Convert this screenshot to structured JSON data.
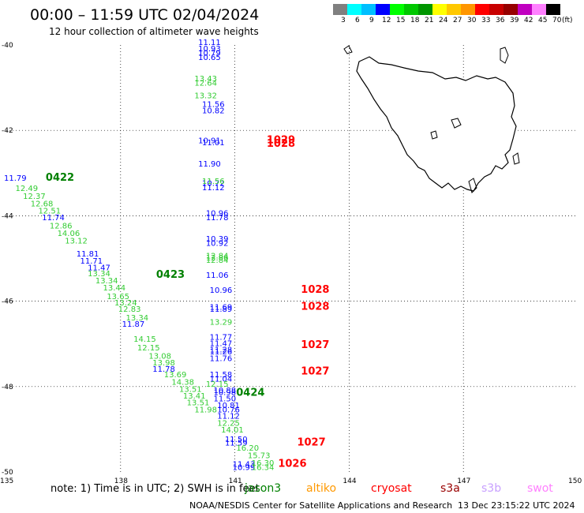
{
  "title": "00:00 – 11:59 UTC 02/04/2024",
  "subtitle": "12 hour collection of altimeter wave heights",
  "note": "note:  1) Time is in UTC; 2) SWH is in feet",
  "credits": "NOAA/NESDIS Center for Satellite Applications and Research",
  "generated": "13 Dec 23:15:22 UTC 2024",
  "legend": {
    "unit": "(ft)",
    "labels": [
      "3",
      "6",
      "9",
      "12",
      "15",
      "18",
      "21",
      "24",
      "27",
      "30",
      "33",
      "36",
      "39",
      "42",
      "45",
      "70"
    ],
    "colors": [
      "#808080",
      "#00ffff",
      "#00bfff",
      "#0000ff",
      "#00ff00",
      "#00c800",
      "#009600",
      "#ffff00",
      "#ffc800",
      "#ff9600",
      "#ff0000",
      "#c80000",
      "#960000",
      "#c000c0",
      "#ff80ff",
      "#000000"
    ]
  },
  "satellites": [
    {
      "name": "jason3",
      "color": "#008000"
    },
    {
      "name": "altiko",
      "color": "#ff9900"
    },
    {
      "name": "cryosat",
      "color": "#ff0000"
    },
    {
      "name": "s3a",
      "color": "#990000"
    },
    {
      "name": "s3b",
      "color": "#c8a0ff"
    },
    {
      "name": "swot",
      "color": "#ff80ff"
    }
  ],
  "map": {
    "lon_ticks": [
      "135",
      "138",
      "141",
      "144",
      "147",
      "150"
    ],
    "lat_ticks": [
      "-40",
      "-42",
      "-44",
      "-46",
      "-48",
      "-50"
    ],
    "lon_range": [
      135,
      150
    ],
    "lat_range": [
      -50,
      -40
    ]
  },
  "tracks": [
    {
      "color": "#0000ff",
      "points": [
        {
          "lon": 140.1,
          "lat": -40.0,
          "v": "11.11"
        },
        {
          "lon": 140.1,
          "lat": -40.15,
          "v": "10.93"
        },
        {
          "lon": 140.1,
          "lat": -40.25,
          "v": "10.79"
        },
        {
          "lon": 140.1,
          "lat": -40.35,
          "v": "10.65"
        },
        {
          "lon": 140.2,
          "lat": -41.45,
          "v": "11.56"
        },
        {
          "lon": 140.2,
          "lat": -41.6,
          "v": "10.82"
        },
        {
          "lon": 140.1,
          "lat": -42.3,
          "v": "10.91"
        },
        {
          "lon": 140.2,
          "lat": -42.35,
          "v": "11.01"
        },
        {
          "lon": 140.1,
          "lat": -42.85,
          "v": "11.90"
        },
        {
          "lon": 140.2,
          "lat": -43.3,
          "v": "10.72"
        },
        {
          "lon": 140.2,
          "lat": -43.4,
          "v": "11.12"
        },
        {
          "lon": 140.3,
          "lat": -44.0,
          "v": "10.96"
        },
        {
          "lon": 140.3,
          "lat": -44.1,
          "v": "11.78"
        },
        {
          "lon": 140.3,
          "lat": -44.6,
          "v": "10.39"
        },
        {
          "lon": 140.3,
          "lat": -44.7,
          "v": "10.92"
        },
        {
          "lon": 140.3,
          "lat": -45.45,
          "v": "11.06"
        },
        {
          "lon": 140.4,
          "lat": -45.8,
          "v": "10.96"
        },
        {
          "lon": 140.4,
          "lat": -46.2,
          "v": "11.69"
        },
        {
          "lon": 140.4,
          "lat": -46.25,
          "v": "11.89"
        },
        {
          "lon": 140.4,
          "lat": -46.9,
          "v": "11.77"
        },
        {
          "lon": 140.4,
          "lat": -47.05,
          "v": "11.47"
        },
        {
          "lon": 140.4,
          "lat": -47.2,
          "v": "11.28"
        },
        {
          "lon": 140.4,
          "lat": -47.25,
          "v": "11.26"
        },
        {
          "lon": 140.4,
          "lat": -47.4,
          "v": "11.76"
        },
        {
          "lon": 140.4,
          "lat": -47.78,
          "v": "11.58"
        },
        {
          "lon": 140.4,
          "lat": -47.88,
          "v": "11.04"
        },
        {
          "lon": 140.5,
          "lat": -48.15,
          "v": "10.88"
        },
        {
          "lon": 140.5,
          "lat": -48.2,
          "v": "10.98"
        },
        {
          "lon": 140.5,
          "lat": -48.35,
          "v": "11.50"
        },
        {
          "lon": 140.6,
          "lat": -48.5,
          "v": "10.81"
        },
        {
          "lon": 140.6,
          "lat": -48.6,
          "v": "10.76"
        },
        {
          "lon": 140.6,
          "lat": -48.75,
          "v": "11.12"
        },
        {
          "lon": 140.8,
          "lat": -49.3,
          "v": "11.50"
        },
        {
          "lon": 140.8,
          "lat": -49.38,
          "v": "11.59"
        },
        {
          "lon": 141.0,
          "lat": -49.88,
          "v": "11.43"
        },
        {
          "lon": 141.0,
          "lat": -49.95,
          "v": "10.99"
        }
      ]
    },
    {
      "color": "#33cc33",
      "points": [
        {
          "lon": 140.0,
          "lat": -40.85,
          "v": "13.43"
        },
        {
          "lon": 140.0,
          "lat": -40.95,
          "v": "12.64"
        },
        {
          "lon": 140.0,
          "lat": -41.25,
          "v": "13.32"
        },
        {
          "lon": 140.2,
          "lat": -43.25,
          "v": "11.56"
        },
        {
          "lon": 140.3,
          "lat": -45.0,
          "v": "12.84"
        },
        {
          "lon": 140.3,
          "lat": -45.05,
          "v": "12.86"
        },
        {
          "lon": 140.3,
          "lat": -45.1,
          "v": "12.84"
        },
        {
          "lon": 140.4,
          "lat": -46.55,
          "v": "13.29"
        },
        {
          "lon": 140.3,
          "lat": -48.0,
          "v": "12.15"
        },
        {
          "lon": 140.6,
          "lat": -48.92,
          "v": "12.25"
        },
        {
          "lon": 140.7,
          "lat": -49.08,
          "v": "14.01"
        },
        {
          "lon": 141.1,
          "lat": -49.5,
          "v": "16.20"
        },
        {
          "lon": 141.4,
          "lat": -49.68,
          "v": "15.73"
        },
        {
          "lon": 141.5,
          "lat": -49.85,
          "v": "16.30"
        },
        {
          "lon": 141.5,
          "lat": -49.95,
          "v": "16.34"
        },
        {
          "lon": 135.3,
          "lat": -43.42,
          "v": "12.49"
        },
        {
          "lon": 135.5,
          "lat": -43.6,
          "v": "12.37"
        },
        {
          "lon": 135.7,
          "lat": -43.78,
          "v": "12.68"
        },
        {
          "lon": 135.9,
          "lat": -43.95,
          "v": "12.51"
        },
        {
          "lon": 136.2,
          "lat": -44.3,
          "v": "12.86"
        },
        {
          "lon": 136.4,
          "lat": -44.47,
          "v": "14.06"
        },
        {
          "lon": 136.6,
          "lat": -44.65,
          "v": "13.12"
        },
        {
          "lon": 137.2,
          "lat": -45.42,
          "v": "13.34"
        },
        {
          "lon": 137.4,
          "lat": -45.58,
          "v": "13.34"
        },
        {
          "lon": 137.6,
          "lat": -45.75,
          "v": "13.44"
        },
        {
          "lon": 137.7,
          "lat": -45.95,
          "v": "13.65"
        },
        {
          "lon": 137.9,
          "lat": -46.1,
          "v": "13.24"
        },
        {
          "lon": 138.0,
          "lat": -46.25,
          "v": "12.83"
        },
        {
          "lon": 138.2,
          "lat": -46.45,
          "v": "13.34"
        },
        {
          "lon": 138.4,
          "lat": -46.95,
          "v": "14.15"
        },
        {
          "lon": 138.5,
          "lat": -47.15,
          "v": "12.15"
        },
        {
          "lon": 138.8,
          "lat": -47.35,
          "v": "13.08"
        },
        {
          "lon": 138.9,
          "lat": -47.5,
          "v": "13.98"
        },
        {
          "lon": 139.2,
          "lat": -47.78,
          "v": "13.69"
        },
        {
          "lon": 139.4,
          "lat": -47.96,
          "v": "14.38"
        },
        {
          "lon": 139.6,
          "lat": -48.12,
          "v": "13.51"
        },
        {
          "lon": 139.7,
          "lat": -48.28,
          "v": "13.41"
        },
        {
          "lon": 139.8,
          "lat": -48.44,
          "v": "13.51"
        },
        {
          "lon": 140.0,
          "lat": -48.6,
          "v": "11.98"
        }
      ]
    },
    {
      "color": "#0000ff",
      "points": [
        {
          "lon": 135.0,
          "lat": -43.18,
          "v": "11.79"
        },
        {
          "lon": 136.0,
          "lat": -44.1,
          "v": "11.74"
        },
        {
          "lon": 136.9,
          "lat": -44.95,
          "v": "11.81"
        },
        {
          "lon": 137.0,
          "lat": -45.12,
          "v": "11.71"
        },
        {
          "lon": 137.2,
          "lat": -45.28,
          "v": "11.47"
        },
        {
          "lon": 138.1,
          "lat": -46.6,
          "v": "11.87"
        },
        {
          "lon": 138.9,
          "lat": -47.65,
          "v": "11.78"
        }
      ]
    }
  ],
  "labels": [
    {
      "lon": 142.0,
      "lat": -42.3,
      "v": "1029",
      "color": "#ff0000"
    },
    {
      "lon": 142.0,
      "lat": -42.38,
      "v": "1028",
      "color": "#ff0000"
    },
    {
      "lon": 142.9,
      "lat": -45.8,
      "v": "1028",
      "color": "#ff0000"
    },
    {
      "lon": 142.9,
      "lat": -46.2,
      "v": "1028",
      "color": "#ff0000"
    },
    {
      "lon": 142.9,
      "lat": -47.1,
      "v": "1027",
      "color": "#ff0000"
    },
    {
      "lon": 142.9,
      "lat": -47.72,
      "v": "1027",
      "color": "#ff0000"
    },
    {
      "lon": 142.8,
      "lat": -49.38,
      "v": "1027",
      "color": "#ff0000"
    },
    {
      "lon": 142.3,
      "lat": -49.88,
      "v": "1026",
      "color": "#ff0000"
    },
    {
      "lon": 136.2,
      "lat": -43.18,
      "v": "0422",
      "color": "#008000"
    },
    {
      "lon": 139.1,
      "lat": -45.45,
      "v": "0423",
      "color": "#008000"
    },
    {
      "lon": 141.2,
      "lat": -48.22,
      "v": "0424",
      "color": "#008000"
    }
  ]
}
